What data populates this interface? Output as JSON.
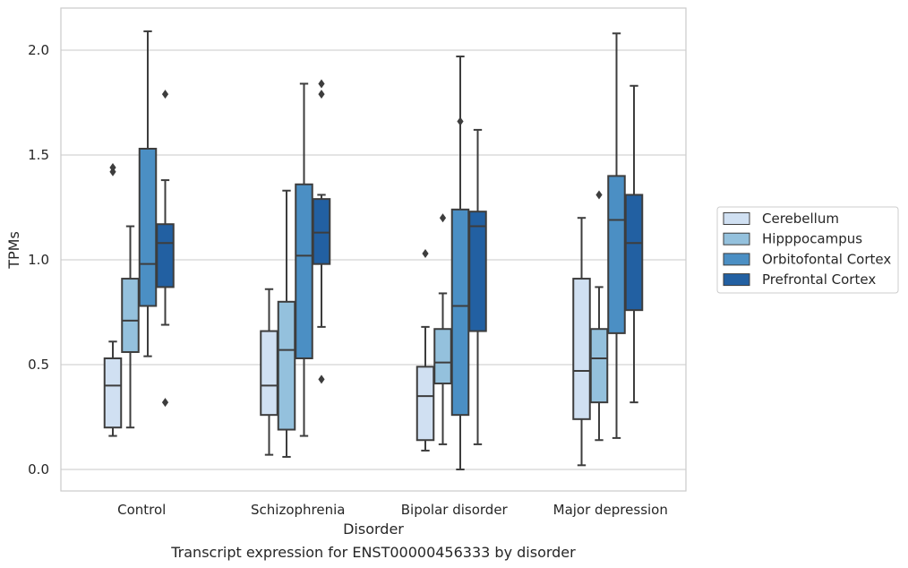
{
  "chart_data": {
    "type": "box",
    "caption": "Transcript expression for ENST00000456333 by disorder",
    "xlabel": "Disorder",
    "ylabel": "TPMs",
    "ylim": [
      -0.1,
      2.2
    ],
    "yticks": [
      0.0,
      0.5,
      1.0,
      1.5,
      2.0
    ],
    "ytick_labels": [
      "0.0",
      "0.5",
      "1.0",
      "1.5",
      "2.0"
    ],
    "grid": "horizontal",
    "legend_position": "right",
    "categories": [
      "Control",
      "Schizophrenia",
      "Bipolar disorder",
      "Major depression"
    ],
    "series": [
      {
        "name": "Cerebellum",
        "color": "#d0e0f2",
        "boxes": [
          {
            "whisker_low": 0.16,
            "q1": 0.2,
            "median": 0.4,
            "q3": 0.53,
            "whisker_high": 0.61,
            "outliers": [
              1.42,
              1.44
            ]
          },
          {
            "whisker_low": 0.07,
            "q1": 0.26,
            "median": 0.4,
            "q3": 0.66,
            "whisker_high": 0.86,
            "outliers": []
          },
          {
            "whisker_low": 0.09,
            "q1": 0.14,
            "median": 0.35,
            "q3": 0.49,
            "whisker_high": 0.68,
            "outliers": [
              1.03
            ]
          },
          {
            "whisker_low": 0.02,
            "q1": 0.24,
            "median": 0.47,
            "q3": 0.91,
            "whisker_high": 1.2,
            "outliers": []
          }
        ]
      },
      {
        "name": "Hipppocampus",
        "color": "#94c1dd",
        "boxes": [
          {
            "whisker_low": 0.2,
            "q1": 0.56,
            "median": 0.71,
            "q3": 0.91,
            "whisker_high": 1.16,
            "outliers": []
          },
          {
            "whisker_low": 0.06,
            "q1": 0.19,
            "median": 0.57,
            "q3": 0.8,
            "whisker_high": 1.33,
            "outliers": []
          },
          {
            "whisker_low": 0.12,
            "q1": 0.41,
            "median": 0.51,
            "q3": 0.67,
            "whisker_high": 0.84,
            "outliers": [
              1.2
            ]
          },
          {
            "whisker_low": 0.14,
            "q1": 0.32,
            "median": 0.53,
            "q3": 0.67,
            "whisker_high": 0.87,
            "outliers": [
              1.31
            ]
          }
        ]
      },
      {
        "name": "Orbitofontal Cortex",
        "color": "#4b8fc4",
        "boxes": [
          {
            "whisker_low": 0.54,
            "q1": 0.78,
            "median": 0.98,
            "q3": 1.53,
            "whisker_high": 2.09,
            "outliers": []
          },
          {
            "whisker_low": 0.16,
            "q1": 0.53,
            "median": 1.02,
            "q3": 1.36,
            "whisker_high": 1.84,
            "outliers": []
          },
          {
            "whisker_low": 0.0,
            "q1": 0.26,
            "median": 0.78,
            "q3": 1.24,
            "whisker_high": 1.97,
            "outliers": [
              1.66
            ]
          },
          {
            "whisker_low": 0.15,
            "q1": 0.65,
            "median": 1.19,
            "q3": 1.4,
            "whisker_high": 2.08,
            "outliers": []
          }
        ]
      },
      {
        "name": "Prefrontal Cortex",
        "color": "#2260a2",
        "boxes": [
          {
            "whisker_low": 0.69,
            "q1": 0.87,
            "median": 1.08,
            "q3": 1.17,
            "whisker_high": 1.38,
            "outliers": [
              1.79,
              0.32
            ]
          },
          {
            "whisker_low": 0.68,
            "q1": 0.98,
            "median": 1.13,
            "q3": 1.29,
            "whisker_high": 1.31,
            "outliers": [
              1.79,
              1.84,
              0.43
            ]
          },
          {
            "whisker_low": 0.12,
            "q1": 0.66,
            "median": 1.16,
            "q3": 1.23,
            "whisker_high": 1.62,
            "outliers": []
          },
          {
            "whisker_low": 0.32,
            "q1": 0.76,
            "median": 1.08,
            "q3": 1.31,
            "whisker_high": 1.83,
            "outliers": []
          }
        ]
      }
    ]
  }
}
